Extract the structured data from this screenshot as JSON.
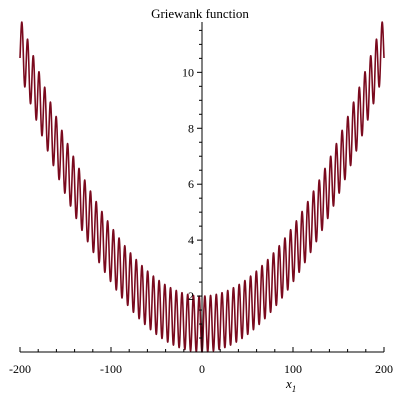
{
  "chart_data": {
    "type": "line",
    "title": "Griewank function",
    "xlabel": "x",
    "xlabel_subscript": "1",
    "ylabel": "",
    "xlim": [
      -200,
      200
    ],
    "ylim": [
      0,
      11.8
    ],
    "x_ticks": [
      -200,
      -100,
      0,
      100,
      200
    ],
    "x_tick_labels": [
      "-200",
      "-100",
      "0",
      "100",
      "200"
    ],
    "y_ticks": [
      2,
      4,
      6,
      8,
      10
    ],
    "y_tick_labels": [
      "2",
      "4",
      "6",
      "8",
      "10"
    ],
    "grid": false,
    "series": [
      {
        "color": "#7a0a1e",
        "x": [
          -200,
          -180,
          -160,
          -140,
          -120,
          -100,
          -80,
          -60,
          -40,
          -20,
          0,
          20,
          40,
          60,
          80,
          100,
          120,
          140,
          160,
          180,
          200
        ],
        "values": [
          11.0,
          9.1,
          7.4,
          5.9,
          4.6,
          3.5,
          2.6,
          1.9,
          1.4,
          1.1,
          0.0,
          1.1,
          1.4,
          1.9,
          2.6,
          3.5,
          4.6,
          5.9,
          7.4,
          9.1,
          11.0
        ],
        "sampling": "f(x) = 1 + x^2/4000 - cos(x)"
      }
    ]
  }
}
